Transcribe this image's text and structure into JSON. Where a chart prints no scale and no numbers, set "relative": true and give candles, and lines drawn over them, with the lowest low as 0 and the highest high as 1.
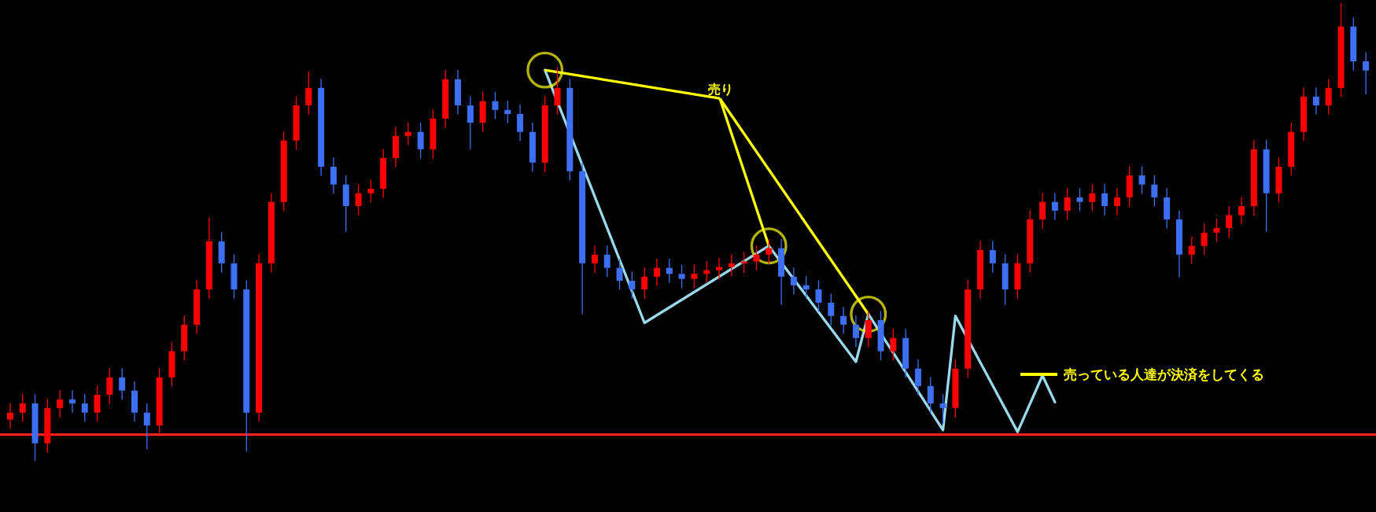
{
  "chart_data": {
    "type": "candlestick",
    "relative": true,
    "categories": [
      null,
      null,
      null,
      null,
      null,
      null,
      null,
      null,
      null,
      null,
      null,
      null,
      null,
      null,
      null,
      null,
      null,
      null,
      null,
      null,
      null,
      null,
      null,
      null,
      null,
      null,
      null,
      null,
      null,
      null,
      null,
      null,
      null,
      null,
      null,
      null,
      null,
      null,
      null,
      null,
      null,
      null,
      null,
      null,
      null,
      null,
      null,
      null,
      null,
      null,
      null,
      null,
      null,
      null,
      null,
      null,
      null,
      null,
      null,
      null,
      null,
      null,
      null,
      null,
      null,
      null,
      null,
      null,
      null,
      null,
      null,
      null,
      null,
      null,
      null,
      null,
      null,
      null,
      null,
      null,
      null,
      null,
      null,
      null,
      null,
      null,
      null,
      null,
      null,
      null,
      null,
      null,
      null,
      null,
      null,
      null,
      null,
      null,
      null,
      null,
      null,
      null,
      null,
      null,
      null,
      null,
      null,
      null,
      null,
      null
    ],
    "colors": [
      "#ff0000",
      "#ff0000",
      "#3d6ff5",
      "#ff0000",
      "#ff0000",
      "#3d6ff5",
      "#3d6ff5",
      "#ff0000",
      "#ff0000",
      "#3d6ff5",
      "#3d6ff5",
      "#3d6ff5",
      "#ff0000",
      "#ff0000",
      "#ff0000",
      "#ff0000",
      "#ff0000",
      "#3d6ff5",
      "#3d6ff5",
      "#3d6ff5",
      "#ff0000",
      "#ff0000",
      "#ff0000",
      "#ff0000",
      "#ff0000",
      "#3d6ff5",
      "#3d6ff5",
      "#3d6ff5",
      "#ff0000",
      "#ff0000",
      "#ff0000",
      "#ff0000",
      "#ff0000",
      "#3d6ff5",
      "#ff0000",
      "#ff0000",
      "#3d6ff5",
      "#3d6ff5",
      "#ff0000",
      "#3d6ff5",
      "#3d6ff5",
      "#3d6ff5",
      "#3d6ff5",
      "#ff0000",
      "#ff0000",
      "#3d6ff5",
      "#3d6ff5",
      "#ff0000",
      "#3d6ff5",
      "#3d6ff5",
      "#3d6ff5",
      "#ff0000",
      "#ff0000",
      "#3d6ff5",
      "#3d6ff5",
      "#ff0000",
      "#ff0000",
      "#ff0000",
      "#ff0000",
      "#ff0000",
      "#ff0000",
      "#ff0000",
      "#3d6ff5",
      "#3d6ff5",
      "#3d6ff5",
      "#3d6ff5",
      "#3d6ff5",
      "#3d6ff5",
      "#3d6ff5",
      "#ff0000",
      "#3d6ff5",
      "#ff0000",
      "#3d6ff5",
      "#3d6ff5",
      "#3d6ff5",
      "#3d6ff5",
      "#ff0000",
      "#ff0000",
      "#ff0000",
      "#3d6ff5",
      "#3d6ff5",
      "#ff0000",
      "#ff0000",
      "#ff0000",
      "#3d6ff5",
      "#ff0000",
      "#3d6ff5",
      "#ff0000",
      "#3d6ff5",
      "#ff0000",
      "#ff0000",
      "#3d6ff5",
      "#3d6ff5",
      "#3d6ff5",
      "#3d6ff5",
      "#ff0000",
      "#ff0000",
      "#ff0000",
      "#ff0000",
      "#ff0000",
      "#ff0000",
      "#3d6ff5",
      "#ff0000",
      "#ff0000",
      "#ff0000",
      "#3d6ff5",
      "#ff0000",
      "#ff0000",
      "#3d6ff5",
      "#3d6ff5"
    ],
    "ohlc": [
      [
        0.09,
        0.125,
        0.07,
        0.105
      ],
      [
        0.105,
        0.145,
        0.085,
        0.125
      ],
      [
        0.125,
        0.145,
        0.0,
        0.038
      ],
      [
        0.038,
        0.135,
        0.018,
        0.115
      ],
      [
        0.115,
        0.154,
        0.095,
        0.134
      ],
      [
        0.134,
        0.154,
        0.105,
        0.125
      ],
      [
        0.125,
        0.145,
        0.085,
        0.105
      ],
      [
        0.105,
        0.164,
        0.085,
        0.144
      ],
      [
        0.144,
        0.202,
        0.124,
        0.182
      ],
      [
        0.182,
        0.202,
        0.133,
        0.153
      ],
      [
        0.153,
        0.173,
        0.085,
        0.105
      ],
      [
        0.105,
        0.125,
        0.025,
        0.077
      ],
      [
        0.077,
        0.202,
        0.057,
        0.182
      ],
      [
        0.182,
        0.259,
        0.162,
        0.239
      ],
      [
        0.239,
        0.317,
        0.219,
        0.297
      ],
      [
        0.297,
        0.394,
        0.277,
        0.374
      ],
      [
        0.374,
        0.53,
        0.354,
        0.479
      ],
      [
        0.479,
        0.499,
        0.411,
        0.431
      ],
      [
        0.431,
        0.451,
        0.354,
        0.374
      ],
      [
        0.374,
        0.394,
        0.02,
        0.105
      ],
      [
        0.105,
        0.451,
        0.085,
        0.431
      ],
      [
        0.431,
        0.585,
        0.411,
        0.565
      ],
      [
        0.565,
        0.719,
        0.545,
        0.699
      ],
      [
        0.699,
        0.796,
        0.679,
        0.776
      ],
      [
        0.776,
        0.85,
        0.756,
        0.814
      ],
      [
        0.814,
        0.834,
        0.622,
        0.642
      ],
      [
        0.642,
        0.662,
        0.583,
        0.603
      ],
      [
        0.603,
        0.623,
        0.5,
        0.556
      ],
      [
        0.556,
        0.604,
        0.536,
        0.584
      ],
      [
        0.584,
        0.614,
        0.564,
        0.594
      ],
      [
        0.594,
        0.681,
        0.574,
        0.661
      ],
      [
        0.661,
        0.729,
        0.641,
        0.709
      ],
      [
        0.709,
        0.738,
        0.689,
        0.718
      ],
      [
        0.718,
        0.738,
        0.66,
        0.68
      ],
      [
        0.68,
        0.767,
        0.66,
        0.747
      ],
      [
        0.747,
        0.853,
        0.727,
        0.833
      ],
      [
        0.833,
        0.853,
        0.756,
        0.776
      ],
      [
        0.776,
        0.796,
        0.68,
        0.738
      ],
      [
        0.738,
        0.805,
        0.718,
        0.785
      ],
      [
        0.785,
        0.805,
        0.746,
        0.766
      ],
      [
        0.766,
        0.786,
        0.737,
        0.757
      ],
      [
        0.757,
        0.777,
        0.698,
        0.718
      ],
      [
        0.718,
        0.738,
        0.631,
        0.651
      ],
      [
        0.651,
        0.796,
        0.631,
        0.776
      ],
      [
        0.776,
        0.86,
        0.756,
        0.814
      ],
      [
        0.814,
        0.834,
        0.612,
        0.632
      ],
      [
        0.632,
        0.652,
        0.32,
        0.431
      ],
      [
        0.431,
        0.47,
        0.411,
        0.45
      ],
      [
        0.45,
        0.47,
        0.401,
        0.421
      ],
      [
        0.421,
        0.441,
        0.373,
        0.393
      ],
      [
        0.393,
        0.413,
        0.354,
        0.374
      ],
      [
        0.374,
        0.422,
        0.354,
        0.402
      ],
      [
        0.402,
        0.441,
        0.382,
        0.421
      ],
      [
        0.421,
        0.441,
        0.388,
        0.408
      ],
      [
        0.408,
        0.428,
        0.377,
        0.397
      ],
      [
        0.397,
        0.428,
        0.377,
        0.408
      ],
      [
        0.408,
        0.436,
        0.388,
        0.416
      ],
      [
        0.416,
        0.443,
        0.396,
        0.423
      ],
      [
        0.423,
        0.451,
        0.403,
        0.431
      ],
      [
        0.431,
        0.455,
        0.411,
        0.435
      ],
      [
        0.435,
        0.47,
        0.415,
        0.45
      ],
      [
        0.45,
        0.484,
        0.43,
        0.464
      ],
      [
        0.464,
        0.484,
        0.34,
        0.402
      ],
      [
        0.402,
        0.422,
        0.363,
        0.383
      ],
      [
        0.383,
        0.403,
        0.354,
        0.374
      ],
      [
        0.374,
        0.394,
        0.325,
        0.345
      ],
      [
        0.345,
        0.365,
        0.296,
        0.316
      ],
      [
        0.316,
        0.336,
        0.277,
        0.297
      ],
      [
        0.297,
        0.317,
        0.248,
        0.268
      ],
      [
        0.268,
        0.327,
        0.248,
        0.307
      ],
      [
        0.307,
        0.327,
        0.219,
        0.239
      ],
      [
        0.239,
        0.288,
        0.219,
        0.268
      ],
      [
        0.268,
        0.288,
        0.181,
        0.201
      ],
      [
        0.201,
        0.221,
        0.143,
        0.163
      ],
      [
        0.163,
        0.183,
        0.105,
        0.125
      ],
      [
        0.125,
        0.145,
        0.08,
        0.115
      ],
      [
        0.115,
        0.221,
        0.095,
        0.201
      ],
      [
        0.201,
        0.394,
        0.181,
        0.374
      ],
      [
        0.374,
        0.48,
        0.354,
        0.46
      ],
      [
        0.46,
        0.48,
        0.411,
        0.431
      ],
      [
        0.431,
        0.451,
        0.34,
        0.374
      ],
      [
        0.374,
        0.451,
        0.354,
        0.431
      ],
      [
        0.431,
        0.547,
        0.411,
        0.527
      ],
      [
        0.527,
        0.585,
        0.507,
        0.565
      ],
      [
        0.565,
        0.585,
        0.526,
        0.546
      ],
      [
        0.546,
        0.595,
        0.526,
        0.575
      ],
      [
        0.575,
        0.595,
        0.545,
        0.565
      ],
      [
        0.565,
        0.604,
        0.545,
        0.584
      ],
      [
        0.584,
        0.604,
        0.536,
        0.556
      ],
      [
        0.556,
        0.595,
        0.536,
        0.575
      ],
      [
        0.575,
        0.643,
        0.555,
        0.623
      ],
      [
        0.623,
        0.643,
        0.583,
        0.603
      ],
      [
        0.603,
        0.623,
        0.555,
        0.575
      ],
      [
        0.575,
        0.595,
        0.507,
        0.527
      ],
      [
        0.527,
        0.547,
        0.4,
        0.45
      ],
      [
        0.45,
        0.489,
        0.43,
        0.469
      ],
      [
        0.469,
        0.518,
        0.449,
        0.498
      ],
      [
        0.498,
        0.528,
        0.478,
        0.508
      ],
      [
        0.508,
        0.556,
        0.488,
        0.536
      ],
      [
        0.536,
        0.576,
        0.516,
        0.556
      ],
      [
        0.556,
        0.7,
        0.536,
        0.68
      ],
      [
        0.68,
        0.7,
        0.5,
        0.584
      ],
      [
        0.584,
        0.662,
        0.564,
        0.642
      ],
      [
        0.642,
        0.738,
        0.622,
        0.718
      ],
      [
        0.718,
        0.815,
        0.698,
        0.795
      ],
      [
        0.795,
        0.815,
        0.756,
        0.776
      ],
      [
        0.776,
        0.834,
        0.756,
        0.814
      ],
      [
        0.814,
        1.0,
        0.794,
        0.948
      ],
      [
        0.948,
        0.968,
        0.852,
        0.872
      ],
      [
        0.872,
        0.892,
        0.8,
        0.852
      ]
    ],
    "series": [
      {
        "type": "line",
        "color": "#9ad9ec",
        "values": [
          null,
          null,
          null,
          null,
          null,
          null,
          null,
          null,
          null,
          null,
          null,
          null,
          null,
          null,
          null,
          null,
          null,
          null,
          null,
          null,
          null,
          null,
          null,
          null,
          null,
          null,
          null,
          null,
          null,
          null,
          null,
          null,
          null,
          null,
          null,
          null,
          null,
          null,
          null,
          null,
          null,
          null,
          null,
          0.853,
          null,
          null,
          null,
          null,
          null,
          null,
          null,
          0.301,
          null,
          null,
          null,
          null,
          null,
          null,
          null,
          null,
          null,
          0.469,
          null,
          null,
          null,
          null,
          null,
          null,
          0.216,
          0.32,
          null,
          null,
          null,
          null,
          null,
          0.067,
          0.316,
          null,
          null,
          null,
          null,
          0.063,
          null,
          0.186,
          0.128,
          null,
          null,
          null,
          null,
          null,
          null,
          null,
          null,
          null,
          null,
          null,
          null,
          null,
          null,
          null,
          null,
          null,
          null,
          null,
          null,
          null,
          null,
          null,
          null,
          null
        ]
      }
    ],
    "ref_lines": [
      {
        "axis": "y",
        "value": 0.057,
        "color": "#ff2020"
      }
    ],
    "annotations": [
      "売り",
      "売っている人達が決済をしてくる"
    ]
  }
}
